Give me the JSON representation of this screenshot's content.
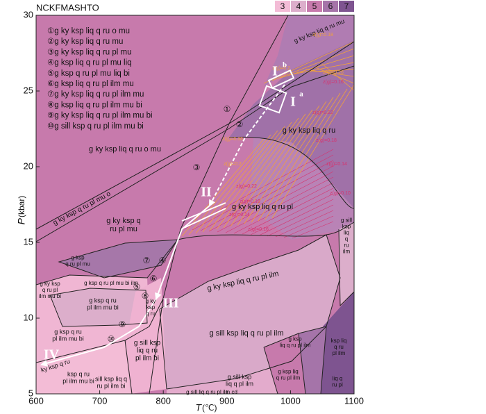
{
  "chart_data": {
    "type": "pseudosection",
    "title": "NCKFMASHTO",
    "xlabel": "T",
    "xlabel_unit": "(℃)",
    "ylabel": "P",
    "ylabel_unit": "(kbar)",
    "xlim": [
      600,
      1100
    ],
    "xticks": [
      600,
      700,
      800,
      900,
      1000,
      1100
    ],
    "ylim": [
      5,
      30
    ],
    "yticks": [
      5,
      10,
      15,
      20,
      25,
      30
    ],
    "legend": {
      "values": [
        3,
        4,
        5,
        6,
        7
      ],
      "colors": [
        "#f3bcd6",
        "#dcaecb",
        "#c77aac",
        "#a574a9",
        "#7e5490"
      ]
    },
    "reactions": [
      "①g ky ksp liq q ru o mu",
      "②g ky ksp liq q ru mu",
      "③g ky ksp liq q ru pl mu",
      "④g ksp liq q ru pl mu liq",
      "⑤g ksp q ru pl mu liq bi",
      "⑥g ksp liq q ru pl ilm mu",
      "⑦g ky ksp liq q ru pl ilm mu",
      "⑧g ksp liq q ru pl ilm mu bi",
      "⑨g ky ksp liq q ru pl ilm mu bi",
      "⑩g sill ksp q ru pl ilm mu bi"
    ],
    "reaction_markers": [
      "①",
      "②",
      "③",
      "④",
      "⑤",
      "⑥",
      "⑦",
      "⑧",
      "⑨",
      "⑩"
    ],
    "fields": [
      [
        "g ky ksp liq q ru o mu"
      ],
      [
        "g ky ksp q",
        "ru pl mu"
      ],
      [
        "g ky ksp q ru pl mu o"
      ],
      [
        "g ky ksp liq q ru mu"
      ],
      [
        "g ky ksp liq q ru"
      ],
      [
        "g ky ksp liq q ru pl"
      ],
      [
        "g ky ksp liq q ru pl ilm"
      ],
      [
        "g sill ksp liq q ru pl ilm"
      ],
      [
        "g ksp",
        "q ru pl mu"
      ],
      [
        "g ksp q ru pl mu bi ilm"
      ],
      [
        "g ky ksp",
        "q ru pl",
        "ilm mu bi"
      ],
      [
        "g ksp q ru",
        "pl ilm mu bi"
      ],
      [
        "g ksp q ru",
        "pl ilm mu bi"
      ],
      [
        "g sill ksp",
        "liq q ru",
        "pl ilm bi"
      ],
      [
        "sill ksp liq q",
        "ru pl ilm bi"
      ],
      [
        "ky ksp q ru"
      ],
      [
        "ksp q ru",
        "pl ilm mu bi"
      ],
      [
        "g sill ksp",
        "liq q pl ilm"
      ],
      [
        "g sill liq q ru pl ilm cd"
      ],
      [
        "g ksp",
        "liq q ru pl ilm"
      ],
      [
        "ksp liq",
        "q ru",
        "pl ilm"
      ],
      [
        "g sill",
        "ksp",
        "liq",
        "q",
        "ru",
        "ilm"
      ],
      [
        "g ksp liq",
        "q ru pl ilm"
      ],
      [
        "liq q",
        "ru pl"
      ],
      [
        "g ky",
        "ksp",
        "q ru"
      ]
    ],
    "isopleths": [
      "z(g)=0.18",
      "z(g)=0.2",
      "z(g)=0.26",
      "z(g)=0.16",
      "z(g)=0.22",
      "z(g)=0.18",
      "z(g)=0.14",
      "z(g)=0.10",
      "z(g)=0.30",
      "z(g)=0.2",
      "z(g)=0.22",
      "z(g)=0.18",
      "z(g)=0.14",
      "z(g)=0.16"
    ],
    "path_labels": [
      "I",
      "a",
      "I",
      "b",
      "II",
      "III",
      "IV"
    ]
  }
}
